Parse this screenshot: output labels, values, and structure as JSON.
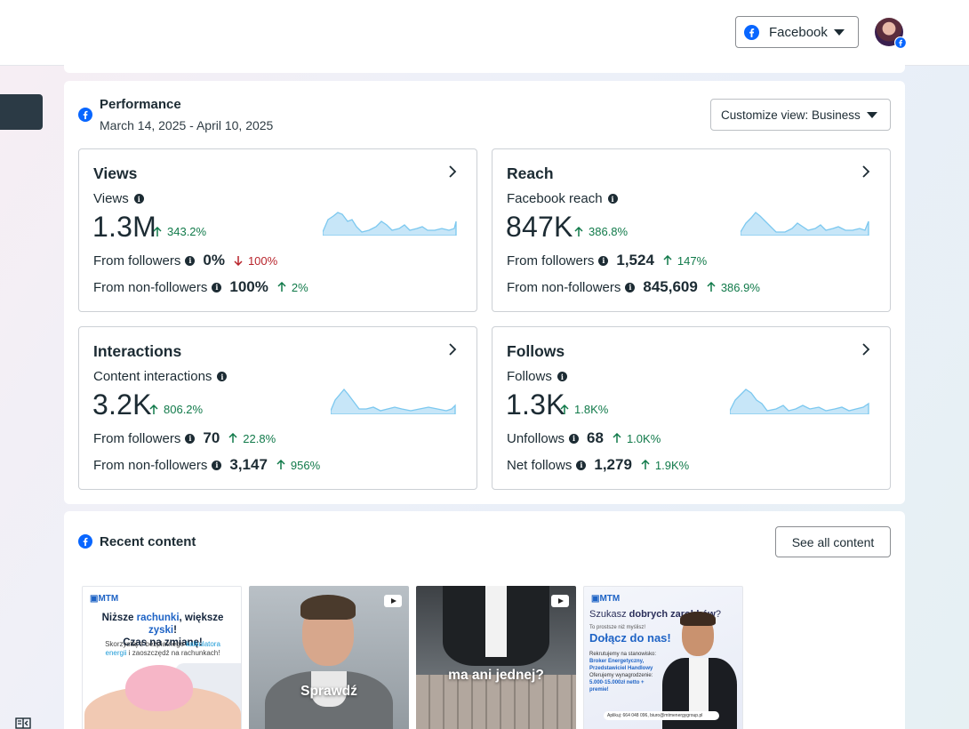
{
  "header": {
    "platform_label": "Facebook"
  },
  "performance": {
    "title": "Performance",
    "date_range": "March 14, 2025 - April 10, 2025",
    "customize_label": "Customize view: Business",
    "cards": {
      "views": {
        "title": "Views",
        "metric_label": "Views",
        "value": "1.3M",
        "delta": "343.2%",
        "row1_label": "From followers",
        "row1_value": "0%",
        "row1_delta": "100%",
        "row2_label": "From non-followers",
        "row2_value": "100%",
        "row2_delta": "2%"
      },
      "reach": {
        "title": "Reach",
        "metric_label": "Facebook reach",
        "value": "847K",
        "delta": "386.8%",
        "row1_label": "From followers",
        "row1_value": "1,524",
        "row1_delta": "147%",
        "row2_label": "From non-followers",
        "row2_value": "845,609",
        "row2_delta": "386.9%"
      },
      "interactions": {
        "title": "Interactions",
        "metric_label": "Content interactions",
        "value": "3.2K",
        "delta": "806.2%",
        "row1_label": "From followers",
        "row1_value": "70",
        "row1_delta": "22.8%",
        "row2_label": "From non-followers",
        "row2_value": "3,147",
        "row2_delta": "956%"
      },
      "follows": {
        "title": "Follows",
        "metric_label": "Follows",
        "value": "1.3K",
        "delta": "1.8K%",
        "row1_label": "Unfollows",
        "row1_value": "68",
        "row1_delta": "1.0K%",
        "row2_label": "Net follows",
        "row2_value": "1,279",
        "row2_delta": "1.9K%"
      }
    }
  },
  "recent": {
    "title": "Recent content",
    "see_all_label": "See all content",
    "thumbs": {
      "t1": {
        "logo": "MTM",
        "head_a": "Niższe ",
        "head_b": "rachunki",
        "head_c": ", większe ",
        "head_d": "zyski",
        "head_e": "!",
        "head_line2": "Czas na zmianę!",
        "sub_a": "Skorzystaj z bezpłatnego ",
        "sub_b": "kalkulatora energii",
        "sub_c": " i zaoszczędź na rachunkach!"
      },
      "t2": {
        "caption": "Sprawdź"
      },
      "t3": {
        "caption": "ma ani jednej?"
      },
      "t4": {
        "logo": "MTM",
        "q_a": "Szukasz ",
        "q_b": "dobrych zarobków",
        "q_c": "?",
        "small": "To prostsze niż myślisz!",
        "join": "Dołącz do nas!",
        "l1": "Rekrutujemy na stanowisko:",
        "l2": "Broker Energetyczny, Przedstawiciel Handlowy",
        "l3": "Oferujemy wynagrodzenie:",
        "l4": "5.000-15.000zł netto + premie!",
        "apply": "Aplikuj: 664 048 096, biuro@mtmenergygroup.pl"
      }
    }
  },
  "icons": {
    "facebook": "facebook-icon",
    "chevron": "chevron-right-icon",
    "info": "info-icon",
    "up": "arrow-up-icon",
    "down": "arrow-down-icon"
  },
  "colors": {
    "positive": "#117a4a",
    "negative": "#b8242b",
    "brand": "#0866ff",
    "spark_fill": "#c7e6f8",
    "spark_line": "#7cc8ef"
  }
}
